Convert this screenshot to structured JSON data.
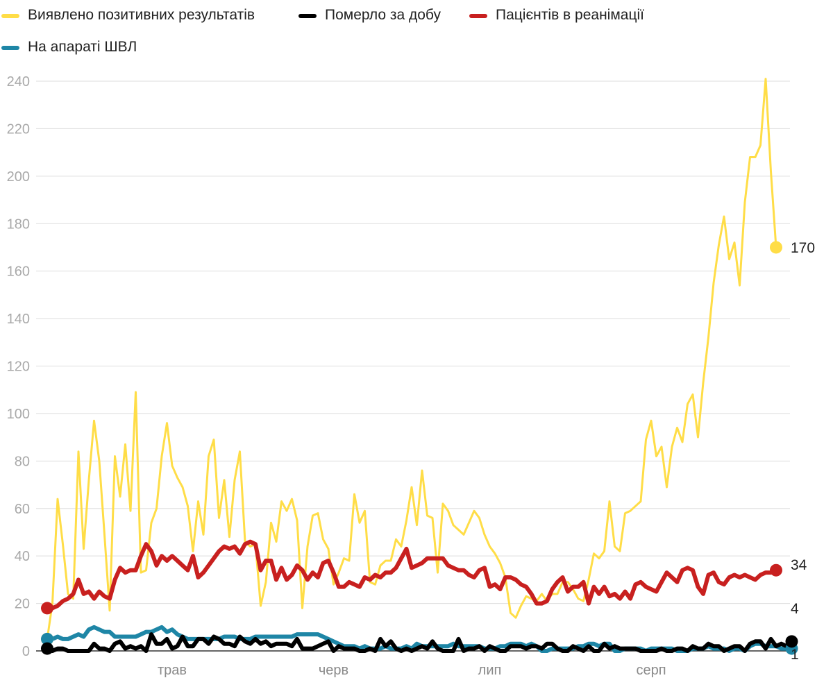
{
  "chart_data": {
    "type": "line",
    "title": "",
    "xlabel": "",
    "ylabel": "",
    "ylim": [
      0,
      240
    ],
    "y_ticks": [
      0,
      20,
      40,
      60,
      80,
      100,
      120,
      140,
      160,
      180,
      200,
      220,
      240
    ],
    "x_ticks": [
      "трав",
      "черв",
      "лип",
      "серп"
    ],
    "legend_position": "top-left",
    "grid": true,
    "x_start": "2020-04-07",
    "series": [
      {
        "name": "Виявлено позитивних результатів",
        "color": "#ffdd47",
        "values": [
          5,
          20,
          64,
          45,
          24,
          22,
          84,
          43,
          72,
          97,
          80,
          49,
          17,
          82,
          65,
          87,
          59,
          109,
          33,
          34,
          54,
          60,
          82,
          96,
          78,
          73,
          69,
          61,
          42,
          63,
          49,
          82,
          89,
          56,
          72,
          48,
          72,
          84,
          46,
          44,
          45,
          19,
          29,
          54,
          46,
          63,
          59,
          64,
          55,
          18,
          44,
          57,
          58,
          47,
          43,
          28,
          33,
          39,
          38,
          66,
          54,
          59,
          29,
          28,
          36,
          38,
          38,
          47,
          44,
          55,
          69,
          53,
          76,
          57,
          56,
          33,
          62,
          59,
          53,
          51,
          49,
          54,
          59,
          56,
          49,
          44,
          41,
          37,
          31,
          16,
          14,
          19,
          23,
          22,
          21,
          24,
          21,
          24,
          24,
          29,
          29,
          26,
          22,
          21,
          30,
          41,
          39,
          42,
          63,
          44,
          42,
          58,
          59,
          61,
          63,
          89,
          97,
          82,
          86,
          69,
          86,
          94,
          88,
          104,
          108,
          90,
          113,
          132,
          155,
          171,
          183,
          165,
          172,
          154,
          189,
          208,
          208,
          213,
          241,
          202,
          170
        ],
        "last_label": "170"
      },
      {
        "name": "Померло за добу",
        "color": "#000000",
        "values": [
          1,
          0,
          1,
          1,
          0,
          0,
          0,
          0,
          0,
          3,
          1,
          1,
          0,
          3,
          4,
          1,
          2,
          1,
          2,
          0,
          7,
          3,
          3,
          5,
          1,
          2,
          6,
          2,
          2,
          5,
          5,
          3,
          6,
          5,
          3,
          3,
          2,
          6,
          4,
          3,
          5,
          3,
          4,
          2,
          3,
          3,
          3,
          2,
          5,
          1,
          1,
          1,
          2,
          3,
          4,
          0,
          2,
          1,
          1,
          1,
          0,
          0,
          1,
          0,
          5,
          2,
          4,
          1,
          0,
          1,
          0,
          1,
          2,
          1,
          4,
          1,
          0,
          0,
          0,
          5,
          0,
          1,
          1,
          2,
          0,
          2,
          1,
          0,
          0,
          2,
          2,
          2,
          1,
          2,
          2,
          1,
          3,
          3,
          1,
          0,
          0,
          2,
          1,
          0,
          2,
          0,
          0,
          3,
          1,
          2,
          1,
          1,
          1,
          1,
          0,
          0,
          0,
          0,
          1,
          0,
          0,
          1,
          1,
          0,
          2,
          1,
          1,
          3,
          2,
          2,
          0,
          1,
          2,
          2,
          0,
          3,
          4,
          4,
          1,
          5,
          2,
          3,
          2,
          4
        ],
        "last_label": "4"
      },
      {
        "name": "Пацієнтів в реанімації",
        "color": "#c8201f",
        "values": [
          18,
          18,
          19,
          21,
          22,
          24,
          30,
          24,
          25,
          22,
          25,
          23,
          22,
          30,
          35,
          33,
          34,
          34,
          40,
          45,
          42,
          36,
          40,
          38,
          40,
          38,
          36,
          34,
          40,
          31,
          33,
          36,
          39,
          42,
          44,
          43,
          44,
          41,
          45,
          46,
          45,
          34,
          38,
          38,
          30,
          35,
          30,
          32,
          36,
          34,
          30,
          33,
          31,
          37,
          38,
          33,
          27,
          27,
          29,
          28,
          27,
          31,
          30,
          32,
          31,
          33,
          33,
          35,
          39,
          43,
          35,
          36,
          37,
          39,
          39,
          39,
          39,
          36,
          35,
          34,
          34,
          32,
          31,
          34,
          35,
          27,
          28,
          26,
          31,
          31,
          30,
          28,
          27,
          24,
          20,
          20,
          21,
          26,
          29,
          31,
          25,
          27,
          27,
          29,
          20,
          27,
          24,
          27,
          23,
          24,
          22,
          25,
          22,
          28,
          29,
          27,
          26,
          25,
          29,
          33,
          31,
          29,
          34,
          35,
          34,
          27,
          24,
          32,
          33,
          29,
          28,
          31,
          32,
          31,
          32,
          31,
          30,
          32,
          33,
          33,
          34
        ],
        "last_label": "34"
      },
      {
        "name": "На апараті ШВЛ",
        "color": "#1e86a6",
        "values": [
          5,
          5,
          6,
          5,
          5,
          6,
          7,
          6,
          9,
          10,
          9,
          8,
          8,
          6,
          6,
          6,
          6,
          6,
          7,
          8,
          8,
          9,
          10,
          8,
          9,
          7,
          6,
          5,
          5,
          5,
          5,
          5,
          5,
          5,
          6,
          6,
          6,
          5,
          5,
          5,
          6,
          6,
          6,
          6,
          6,
          6,
          6,
          6,
          7,
          7,
          7,
          7,
          7,
          6,
          5,
          4,
          3,
          2,
          2,
          2,
          1,
          2,
          1,
          1,
          1,
          2,
          1,
          1,
          1,
          2,
          1,
          3,
          2,
          2,
          2,
          2,
          2,
          2,
          3,
          2,
          2,
          2,
          2,
          2,
          1,
          1,
          1,
          2,
          2,
          3,
          3,
          3,
          2,
          3,
          2,
          0,
          0,
          1,
          1,
          1,
          1,
          1,
          2,
          2,
          3,
          3,
          2,
          3,
          3,
          0,
          0,
          1,
          1,
          1,
          1,
          0,
          1,
          1,
          1,
          1,
          1,
          0,
          0,
          0,
          1,
          1,
          1,
          2,
          1,
          1,
          1,
          0,
          1,
          1,
          0,
          2,
          3,
          3,
          2,
          2,
          2,
          1,
          1,
          1
        ],
        "last_label": "1"
      }
    ]
  }
}
